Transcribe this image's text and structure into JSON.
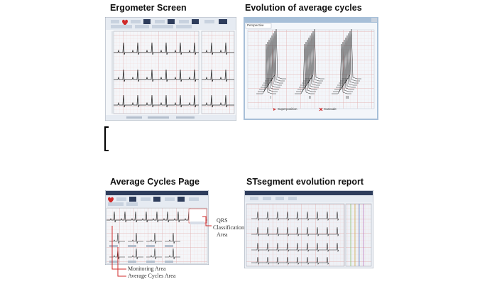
{
  "titles": {
    "ergometer": "Ergometer Screen",
    "evolution": "Evolution of average cycles",
    "average": "Average Cycles Page",
    "st_report": "STsegment evolution report"
  },
  "evolution_window": {
    "tab_label": "Perspective",
    "leads": [
      "I",
      "II",
      "III"
    ],
    "superposition_label": "Superposition",
    "cascade_label": "Cascade"
  },
  "average_page": {
    "callout_qrs_line1": "QRS",
    "callout_qrs_line2": "Classification",
    "callout_qrs_line3": "Area",
    "callout_monitoring": "Monitoring Area",
    "callout_average_cycles": "Average Cycles Area"
  },
  "colors": {
    "grid_major": "#e0a8a8",
    "grid_minor": "#f2dada",
    "window_frame": "#a7bfd8",
    "trace": "#2a2a2a",
    "callout": "#d02a2a",
    "cascade_x": "#cc2222",
    "superposition_arrow": "#d04848"
  },
  "icons": [
    "heart-icon",
    "close-icon",
    "arrow-icon"
  ]
}
